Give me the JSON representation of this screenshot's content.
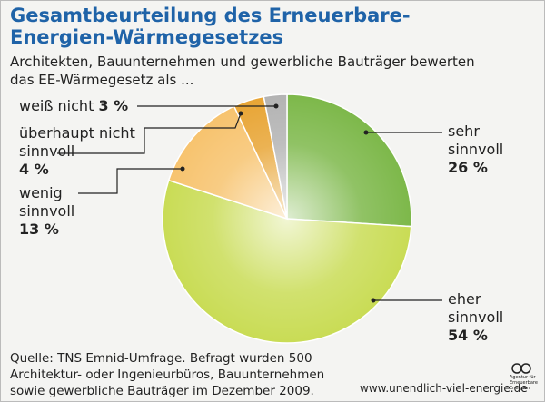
{
  "chart_data": {
    "type": "pie",
    "title": "Gesamtbeurteilung des Erneuerbare-Energien-Wärmegesetzes",
    "subtitle": "Architekten, Bauunternehmen und gewerbliche Bauträger bewerten das EE-Wärmegesetz als ...",
    "categories": [
      "sehr sinnvoll",
      "eher sinnvoll",
      "wenig sinnvoll",
      "überhaupt nicht sinnvoll",
      "weiß nicht"
    ],
    "values": [
      26,
      54,
      13,
      4,
      3
    ],
    "value_labels": [
      "26 %",
      "54 %",
      "13 %",
      "4 %",
      "3 %"
    ],
    "colors": [
      "#7db84a",
      "#c9dc55",
      "#f7c36e",
      "#e8a535",
      "#b3b3b3"
    ],
    "source": "Quelle: TNS Emnid-Umfrage. Befragt wurden 500 Architektur- oder Ingenieurbüros, Bauunternehmen sowie gewerbliche Bauträger im Dezember 2009.",
    "url": "www.unendlich-viel-energie.de",
    "logo_text": "Agentur für Erneuerbare Energien"
  }
}
